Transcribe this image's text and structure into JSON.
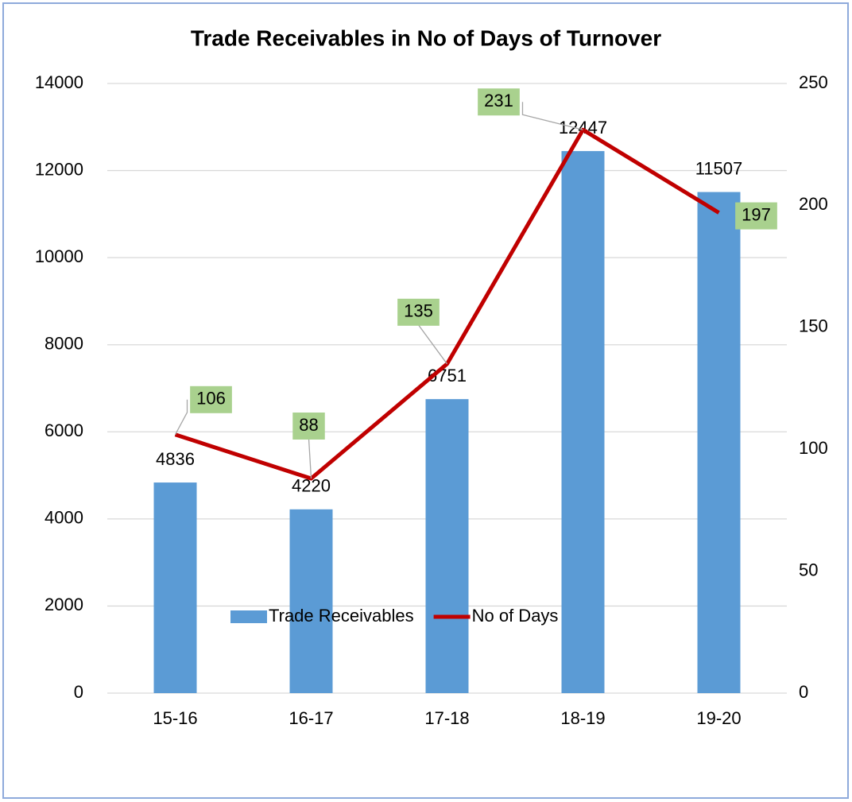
{
  "chart_data": {
    "type": "bar",
    "title": "Trade Receivables in No of Days of Turnover",
    "categories": [
      "15-16",
      "16-17",
      "17-18",
      "18-19",
      "19-20"
    ],
    "series": [
      {
        "name": "Trade Receivables",
        "type": "bar",
        "color": "#5b9bd5",
        "values": [
          4836,
          4220,
          6751,
          12447,
          11507
        ]
      },
      {
        "name": "No of Days",
        "type": "line",
        "axis": "y2",
        "color": "#c00000",
        "values": [
          106,
          88,
          135,
          231,
          197
        ]
      }
    ],
    "ylim": [
      0,
      14000
    ],
    "yticks": [
      0,
      2000,
      4000,
      6000,
      8000,
      10000,
      12000,
      14000
    ],
    "y2lim": [
      0,
      250
    ],
    "y2ticks": [
      0,
      50,
      100,
      150,
      200,
      250
    ],
    "grid": true,
    "legend": "bottom"
  }
}
